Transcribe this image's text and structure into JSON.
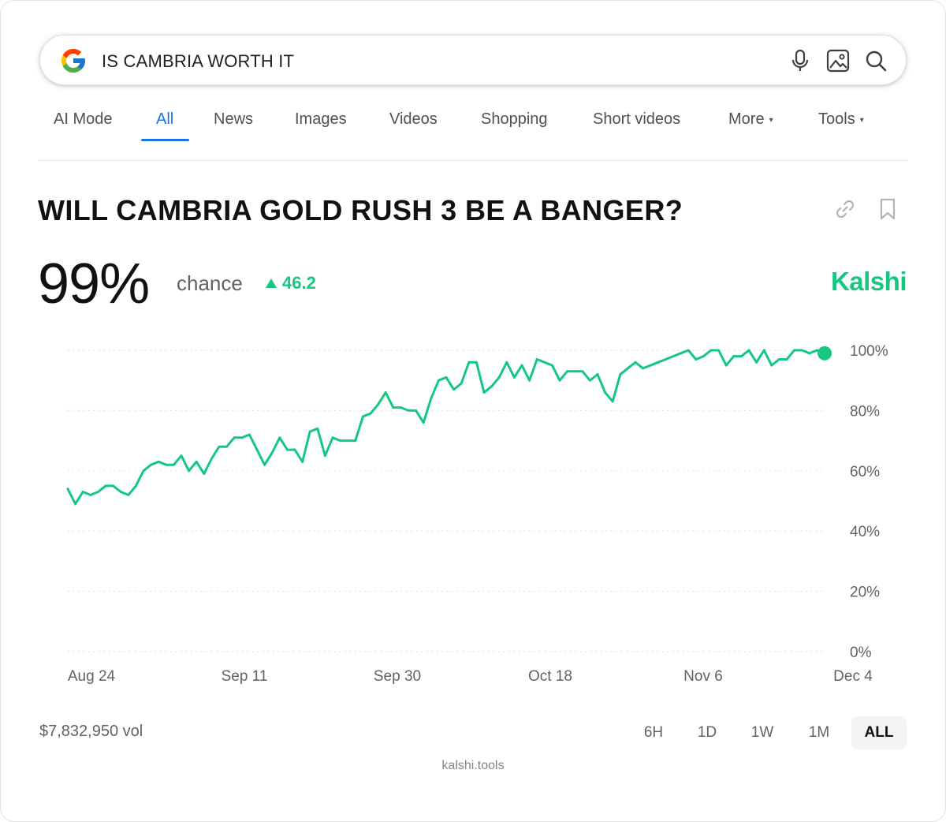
{
  "search": {
    "query": "IS CAMBRIA WORTH IT",
    "logo_icon": "google-g-icon",
    "icons": [
      "microphone-icon",
      "image-search-icon",
      "search-icon"
    ]
  },
  "tabs": [
    {
      "label": "AI Mode"
    },
    {
      "label": "All",
      "active": true
    },
    {
      "label": "News"
    },
    {
      "label": "Images"
    },
    {
      "label": "Videos"
    },
    {
      "label": "Shopping"
    },
    {
      "label": "Short videos"
    },
    {
      "label": "More",
      "caret": "▾"
    },
    {
      "label": "Tools",
      "caret": "▾"
    }
  ],
  "market": {
    "question": "WILL CAMBRIA GOLD RUSH 3 BE A BANGER?",
    "probability": "99%",
    "chance_label": "chance",
    "delta": "46.2",
    "delta_icon": "triangle-up-icon",
    "brand": "Kalshi",
    "volume": "$7,832,950 vol",
    "ranges": [
      {
        "label": "6H"
      },
      {
        "label": "1D"
      },
      {
        "label": "1W"
      },
      {
        "label": "1M"
      },
      {
        "label": "ALL",
        "active": true
      }
    ],
    "footer": "kalshi.tools"
  },
  "colors": {
    "accent": "#16c784",
    "tab_active": "#1a73e8"
  },
  "chart_data": {
    "type": "line",
    "y_tick_labels": [
      "100%",
      "80%",
      "60%",
      "40%",
      "20%",
      "0%"
    ],
    "ylim": [
      0,
      100
    ],
    "x_tick_labels": [
      "Aug 24",
      "Sep 11",
      "Sep 30",
      "Oct 18",
      "Nov 6",
      "Dec 4"
    ],
    "grid": true,
    "series": [
      {
        "color": "#16c784",
        "values": [
          54,
          49,
          53,
          52,
          53,
          55,
          55,
          53,
          52,
          55,
          60,
          62,
          63,
          62,
          62,
          65,
          60,
          63,
          59,
          64,
          68,
          68,
          71,
          71,
          72,
          67,
          62,
          66,
          71,
          67,
          67,
          63,
          73,
          74,
          65,
          71,
          70,
          70,
          70,
          78,
          79,
          82,
          86,
          81,
          81,
          80,
          80,
          76,
          84,
          90,
          91,
          87,
          89,
          96,
          96,
          86,
          88,
          91,
          96,
          91,
          95,
          90,
          97,
          96,
          95,
          90,
          93,
          93,
          93,
          90,
          92,
          86,
          83,
          92,
          94,
          96,
          94,
          95,
          96,
          97,
          98,
          99,
          100,
          97,
          98,
          100,
          100,
          95,
          98,
          98,
          100,
          96,
          100,
          95,
          97,
          97,
          100,
          100,
          99,
          100,
          99
        ]
      }
    ]
  }
}
